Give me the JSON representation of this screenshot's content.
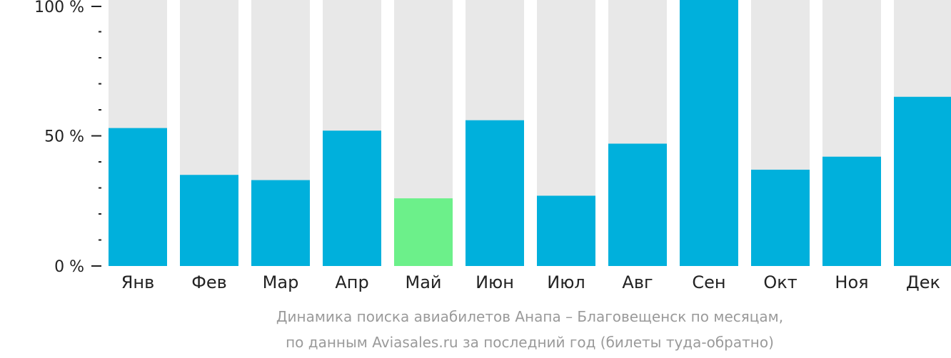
{
  "chart_data": {
    "type": "bar",
    "categories": [
      "Янв",
      "Фев",
      "Мар",
      "Апр",
      "Май",
      "Июн",
      "Июл",
      "Авг",
      "Сен",
      "Окт",
      "Ноя",
      "Дек"
    ],
    "values": [
      53,
      35,
      33,
      52,
      26,
      56,
      27,
      47,
      100,
      37,
      42,
      65
    ],
    "highlight_index": 4,
    "ylim": [
      0,
      100
    ],
    "y_ticks": [
      {
        "value": 0,
        "label": "0 %"
      },
      {
        "value": 50,
        "label": "50 %"
      },
      {
        "value": 100,
        "label": "100 %"
      }
    ],
    "minor_tick_step": 10,
    "grid": false,
    "legend": "none",
    "caption": [
      "Динамика поиска авиабилетов Анапа – Благовещенск по месяцам,",
      "по данным Aviasales.ru за последний год (билеты туда-обратно)"
    ],
    "colors": {
      "bar": "#00b0dc",
      "highlight": "#6cf08a",
      "track": "#e8e8e8",
      "axis": "#222222",
      "caption": "#9a9a9a"
    }
  }
}
